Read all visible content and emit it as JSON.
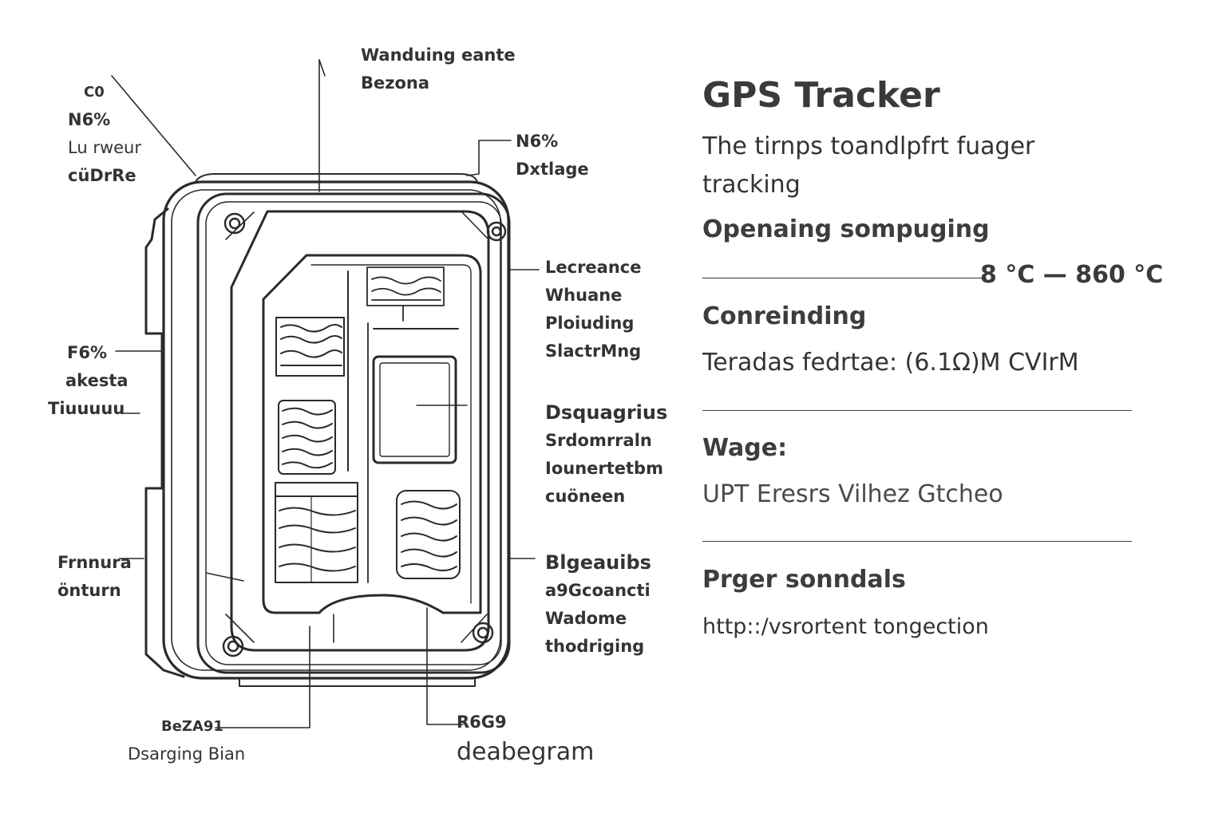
{
  "diagram": {
    "callouts": {
      "top_left": [
        "C0",
        "N6%",
        "Lu rweur",
        "cüDrRe"
      ],
      "top_center": [
        "Wanduing eante",
        "Bezona"
      ],
      "top_right": [
        "N6%",
        "Dxtlage"
      ],
      "left_mid": [
        "F6%",
        "akesta",
        "Tiuuuuu"
      ],
      "left_low": [
        "Frnnura",
        "önturn"
      ],
      "right_1": [
        "Lecreance",
        "Whuane",
        "Ploiuding",
        "SlactrMng"
      ],
      "right_2": [
        "Dsquagrius",
        "Srdomrraln",
        "Iounertetbm",
        "cuöneen"
      ],
      "right_3": [
        "Blgeauibs",
        "a9Gcoancti",
        "Wadome",
        "thodriging"
      ],
      "bottom_left": [
        "BeZA91",
        "Dsarging Bian"
      ],
      "bottom_right": [
        "R6G9",
        "deabegram"
      ]
    }
  },
  "spec": {
    "title": "GPS Tracker",
    "subtitle": "The tirnps toandlpfrt fuager tracking",
    "operating_label": "Openaing sompuging",
    "operating_range": "8 °C — 860 °C",
    "conreinding_label": "Conreinding",
    "conreinding_value": "Teradas fedrtae: (6.1Ω)M CVIrM",
    "wage_label": "Wage:",
    "wage_value": "UPT Eresrs Vilhez Gtcheo",
    "prger_label": "Prger sonndals",
    "prger_value": "http::/vsrortent tongection"
  },
  "colors": {
    "ink": "#2b2b2b",
    "background": "#ffffff"
  }
}
